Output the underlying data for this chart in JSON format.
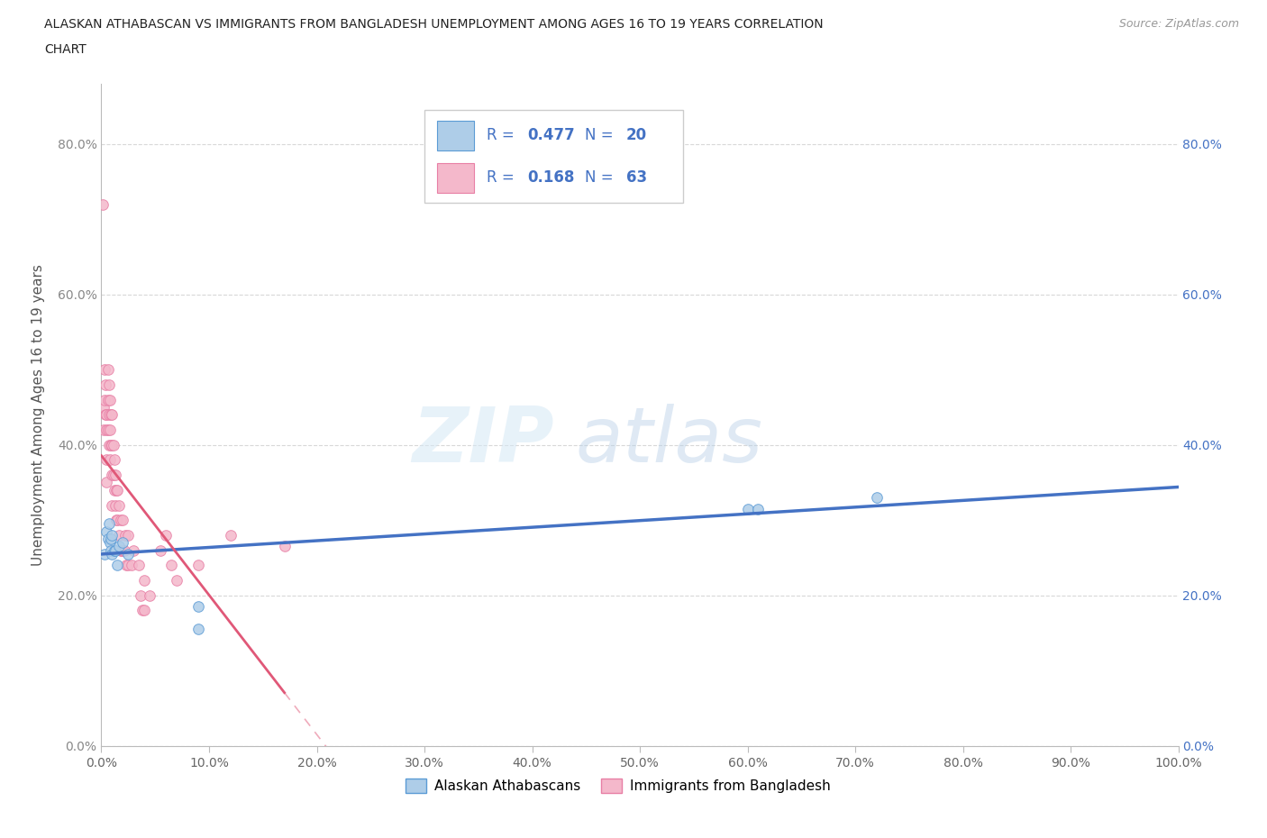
{
  "title_line1": "ALASKAN ATHABASCAN VS IMMIGRANTS FROM BANGLADESH UNEMPLOYMENT AMONG AGES 16 TO 19 YEARS CORRELATION",
  "title_line2": "CHART",
  "source_text": "Source: ZipAtlas.com",
  "ylabel": "Unemployment Among Ages 16 to 19 years",
  "xlim": [
    0.0,
    1.0
  ],
  "ylim": [
    0.0,
    0.88
  ],
  "xtick_labels": [
    "0.0%",
    "10.0%",
    "20.0%",
    "30.0%",
    "40.0%",
    "50.0%",
    "60.0%",
    "70.0%",
    "80.0%",
    "90.0%",
    "100.0%"
  ],
  "ytick_labels": [
    "0.0%",
    "20.0%",
    "40.0%",
    "60.0%",
    "80.0%"
  ],
  "xtick_vals": [
    0.0,
    0.1,
    0.2,
    0.3,
    0.4,
    0.5,
    0.6,
    0.7,
    0.8,
    0.9,
    1.0
  ],
  "ytick_vals": [
    0.0,
    0.2,
    0.4,
    0.6,
    0.8
  ],
  "blue_label": "Alaskan Athabascans",
  "pink_label": "Immigrants from Bangladesh",
  "blue_R": "0.477",
  "blue_N": "20",
  "pink_R": "0.168",
  "pink_N": "63",
  "blue_color": "#aecde8",
  "pink_color": "#f4b8cb",
  "blue_edge_color": "#5b9bd5",
  "pink_edge_color": "#e87fa5",
  "blue_line_color": "#4472c4",
  "pink_line_color": "#e05878",
  "legend_text_color": "#4472c4",
  "watermark_color": "#d0e4f0",
  "watermark_text_color": "#c8d8e8",
  "background_color": "#ffffff",
  "grid_color": "#d8d8d8",
  "marker_size": 70,
  "blue_scatter_x": [
    0.003,
    0.005,
    0.006,
    0.007,
    0.008,
    0.009,
    0.009,
    0.01,
    0.01,
    0.012,
    0.013,
    0.015,
    0.016,
    0.02,
    0.025,
    0.09,
    0.09,
    0.6,
    0.61,
    0.72
  ],
  "blue_scatter_y": [
    0.255,
    0.285,
    0.275,
    0.295,
    0.27,
    0.275,
    0.26,
    0.28,
    0.255,
    0.26,
    0.26,
    0.24,
    0.265,
    0.27,
    0.255,
    0.185,
    0.155,
    0.315,
    0.315,
    0.33
  ],
  "pink_scatter_x": [
    0.001,
    0.002,
    0.002,
    0.003,
    0.003,
    0.004,
    0.004,
    0.005,
    0.005,
    0.005,
    0.005,
    0.006,
    0.006,
    0.006,
    0.007,
    0.007,
    0.007,
    0.008,
    0.008,
    0.008,
    0.009,
    0.009,
    0.01,
    0.01,
    0.01,
    0.01,
    0.011,
    0.011,
    0.012,
    0.012,
    0.013,
    0.013,
    0.014,
    0.014,
    0.015,
    0.015,
    0.016,
    0.016,
    0.018,
    0.018,
    0.019,
    0.02,
    0.02,
    0.021,
    0.022,
    0.023,
    0.025,
    0.025,
    0.028,
    0.03,
    0.035,
    0.036,
    0.038,
    0.04,
    0.04,
    0.045,
    0.055,
    0.06,
    0.065,
    0.07,
    0.09,
    0.12,
    0.17
  ],
  "pink_scatter_y": [
    0.72,
    0.45,
    0.42,
    0.5,
    0.46,
    0.48,
    0.44,
    0.44,
    0.42,
    0.38,
    0.35,
    0.5,
    0.46,
    0.42,
    0.48,
    0.44,
    0.4,
    0.46,
    0.42,
    0.38,
    0.44,
    0.4,
    0.44,
    0.4,
    0.36,
    0.32,
    0.4,
    0.36,
    0.38,
    0.34,
    0.36,
    0.32,
    0.34,
    0.3,
    0.34,
    0.3,
    0.32,
    0.28,
    0.3,
    0.26,
    0.26,
    0.3,
    0.26,
    0.26,
    0.28,
    0.24,
    0.28,
    0.24,
    0.24,
    0.26,
    0.24,
    0.2,
    0.18,
    0.22,
    0.18,
    0.2,
    0.26,
    0.28,
    0.24,
    0.22,
    0.24,
    0.28,
    0.265
  ]
}
